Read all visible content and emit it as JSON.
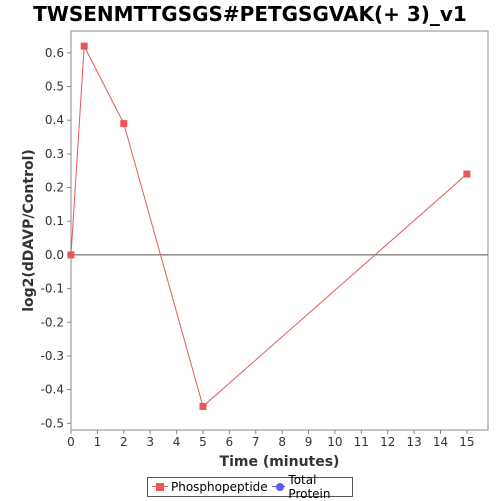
{
  "chart_data": {
    "type": "line",
    "title": "TWSENMTTGSGS#PETGSGVAK(+ 3)_v1",
    "xlabel": "Time (minutes)",
    "ylabel": "log2(dDAVP/Control)",
    "xlim": [
      0,
      15.8
    ],
    "ylim": [
      -0.52,
      0.665
    ],
    "x_ticks": [
      0,
      1,
      2,
      3,
      4,
      5,
      6,
      7,
      8,
      9,
      10,
      11,
      12,
      13,
      14,
      15
    ],
    "y_ticks": [
      -0.5,
      -0.4,
      -0.3,
      -0.2,
      -0.1,
      0.0,
      0.1,
      0.2,
      0.3,
      0.4,
      0.5,
      0.6
    ],
    "y_tick_labels": [
      "-0.5",
      "-0.4",
      "-0.3",
      "-0.2",
      "-0.1",
      "0.0",
      "0.1",
      "0.2",
      "0.3",
      "0.4",
      "0.5",
      "0.6"
    ],
    "zero_line": true,
    "grid": false,
    "legend_position": "bottom",
    "series": [
      {
        "name": "Phosphopeptide",
        "color": "#e8585a",
        "marker": "square",
        "x": [
          0,
          0.5,
          2,
          5,
          15
        ],
        "y": [
          0.0,
          0.62,
          0.39,
          -0.45,
          0.24
        ]
      },
      {
        "name": "Total Protein",
        "color": "#5a5aee",
        "marker": "circle",
        "x": [],
        "y": []
      }
    ]
  }
}
